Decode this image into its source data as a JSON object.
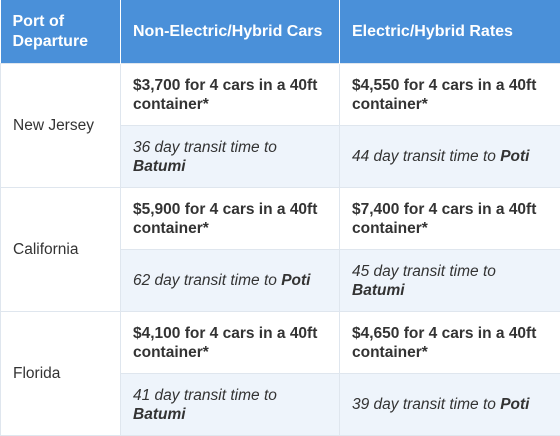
{
  "headers": [
    "Port of Departure",
    "Non-Electric/Hybrid Cars",
    "Electric/Hybrid Rates"
  ],
  "rows": [
    {
      "port": "New Jersey",
      "non_electric_price": "$3,700 for 4 cars in a 40ft container*",
      "electric_price": "$4,550 for 4 cars in a 40ft container*",
      "non_electric_transit": {
        "text": "36 day transit time to",
        "dest": "Batumi"
      },
      "electric_transit": {
        "text": "44 day transit time to",
        "dest": "Poti"
      }
    },
    {
      "port": "California",
      "non_electric_price": "$5,900 for 4 cars in a 40ft container*",
      "electric_price": "$7,400 for 4 cars in a 40ft container*",
      "non_electric_transit": {
        "text": "62 day transit time to",
        "dest": "Poti"
      },
      "electric_transit": {
        "text": "45 day transit time to",
        "dest": "Batumi"
      }
    },
    {
      "port": "Florida",
      "non_electric_price": "$4,100 for 4 cars in a 40ft container*",
      "electric_price": "$4,650 for 4 cars in a 40ft container*",
      "non_electric_transit": {
        "text": "41 day transit time to",
        "dest": "Batumi"
      },
      "electric_transit": {
        "text": "39 day transit time to",
        "dest": "Poti"
      }
    }
  ]
}
